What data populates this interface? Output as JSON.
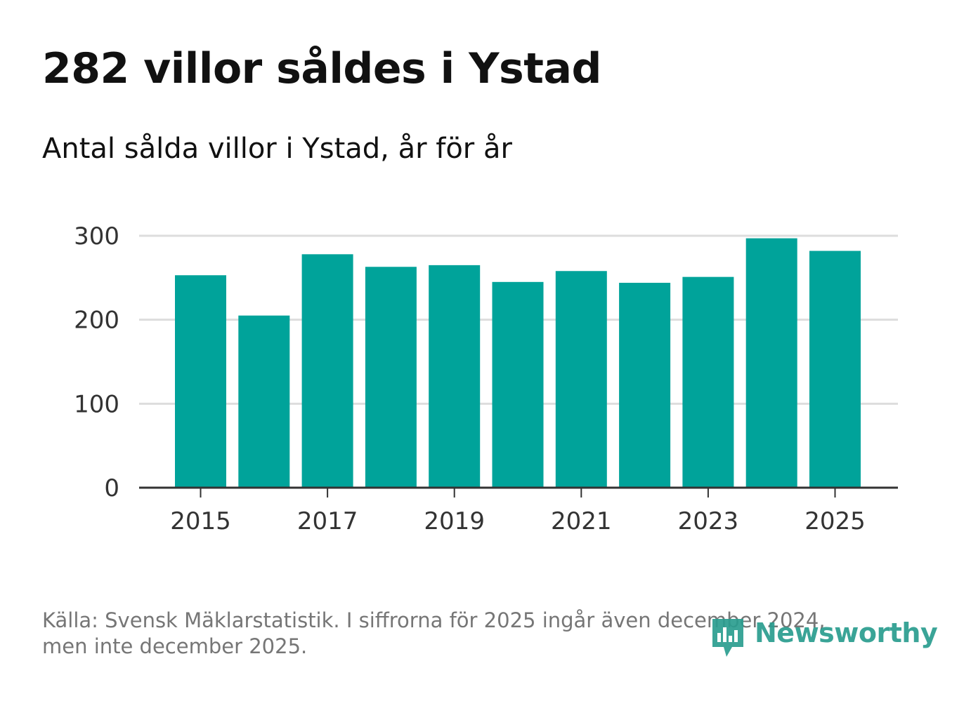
{
  "chart_data": {
    "type": "bar",
    "title": "282 villor såldes i Ystad",
    "subtitle": "Antal sålda villor i Ystad, år för år",
    "categories": [
      "2015",
      "2016",
      "2017",
      "2018",
      "2019",
      "2020",
      "2021",
      "2022",
      "2023",
      "2024",
      "2025"
    ],
    "values": [
      253,
      205,
      278,
      263,
      265,
      245,
      258,
      244,
      251,
      297,
      282
    ],
    "x_tick_labels": [
      "2015",
      "2017",
      "2019",
      "2021",
      "2023",
      "2025"
    ],
    "y_ticks": [
      0,
      100,
      200,
      300
    ],
    "ylim": [
      0,
      300
    ],
    "grid": true,
    "bar_color": "#00a39a",
    "source_lines": [
      "Källa: Svensk Mäklarstatistik. I siffrorna för 2025 ingår även december 2024,",
      "men inte december 2025."
    ]
  },
  "logo": {
    "text": "Newsworthy",
    "color": "#2a9d8f"
  }
}
